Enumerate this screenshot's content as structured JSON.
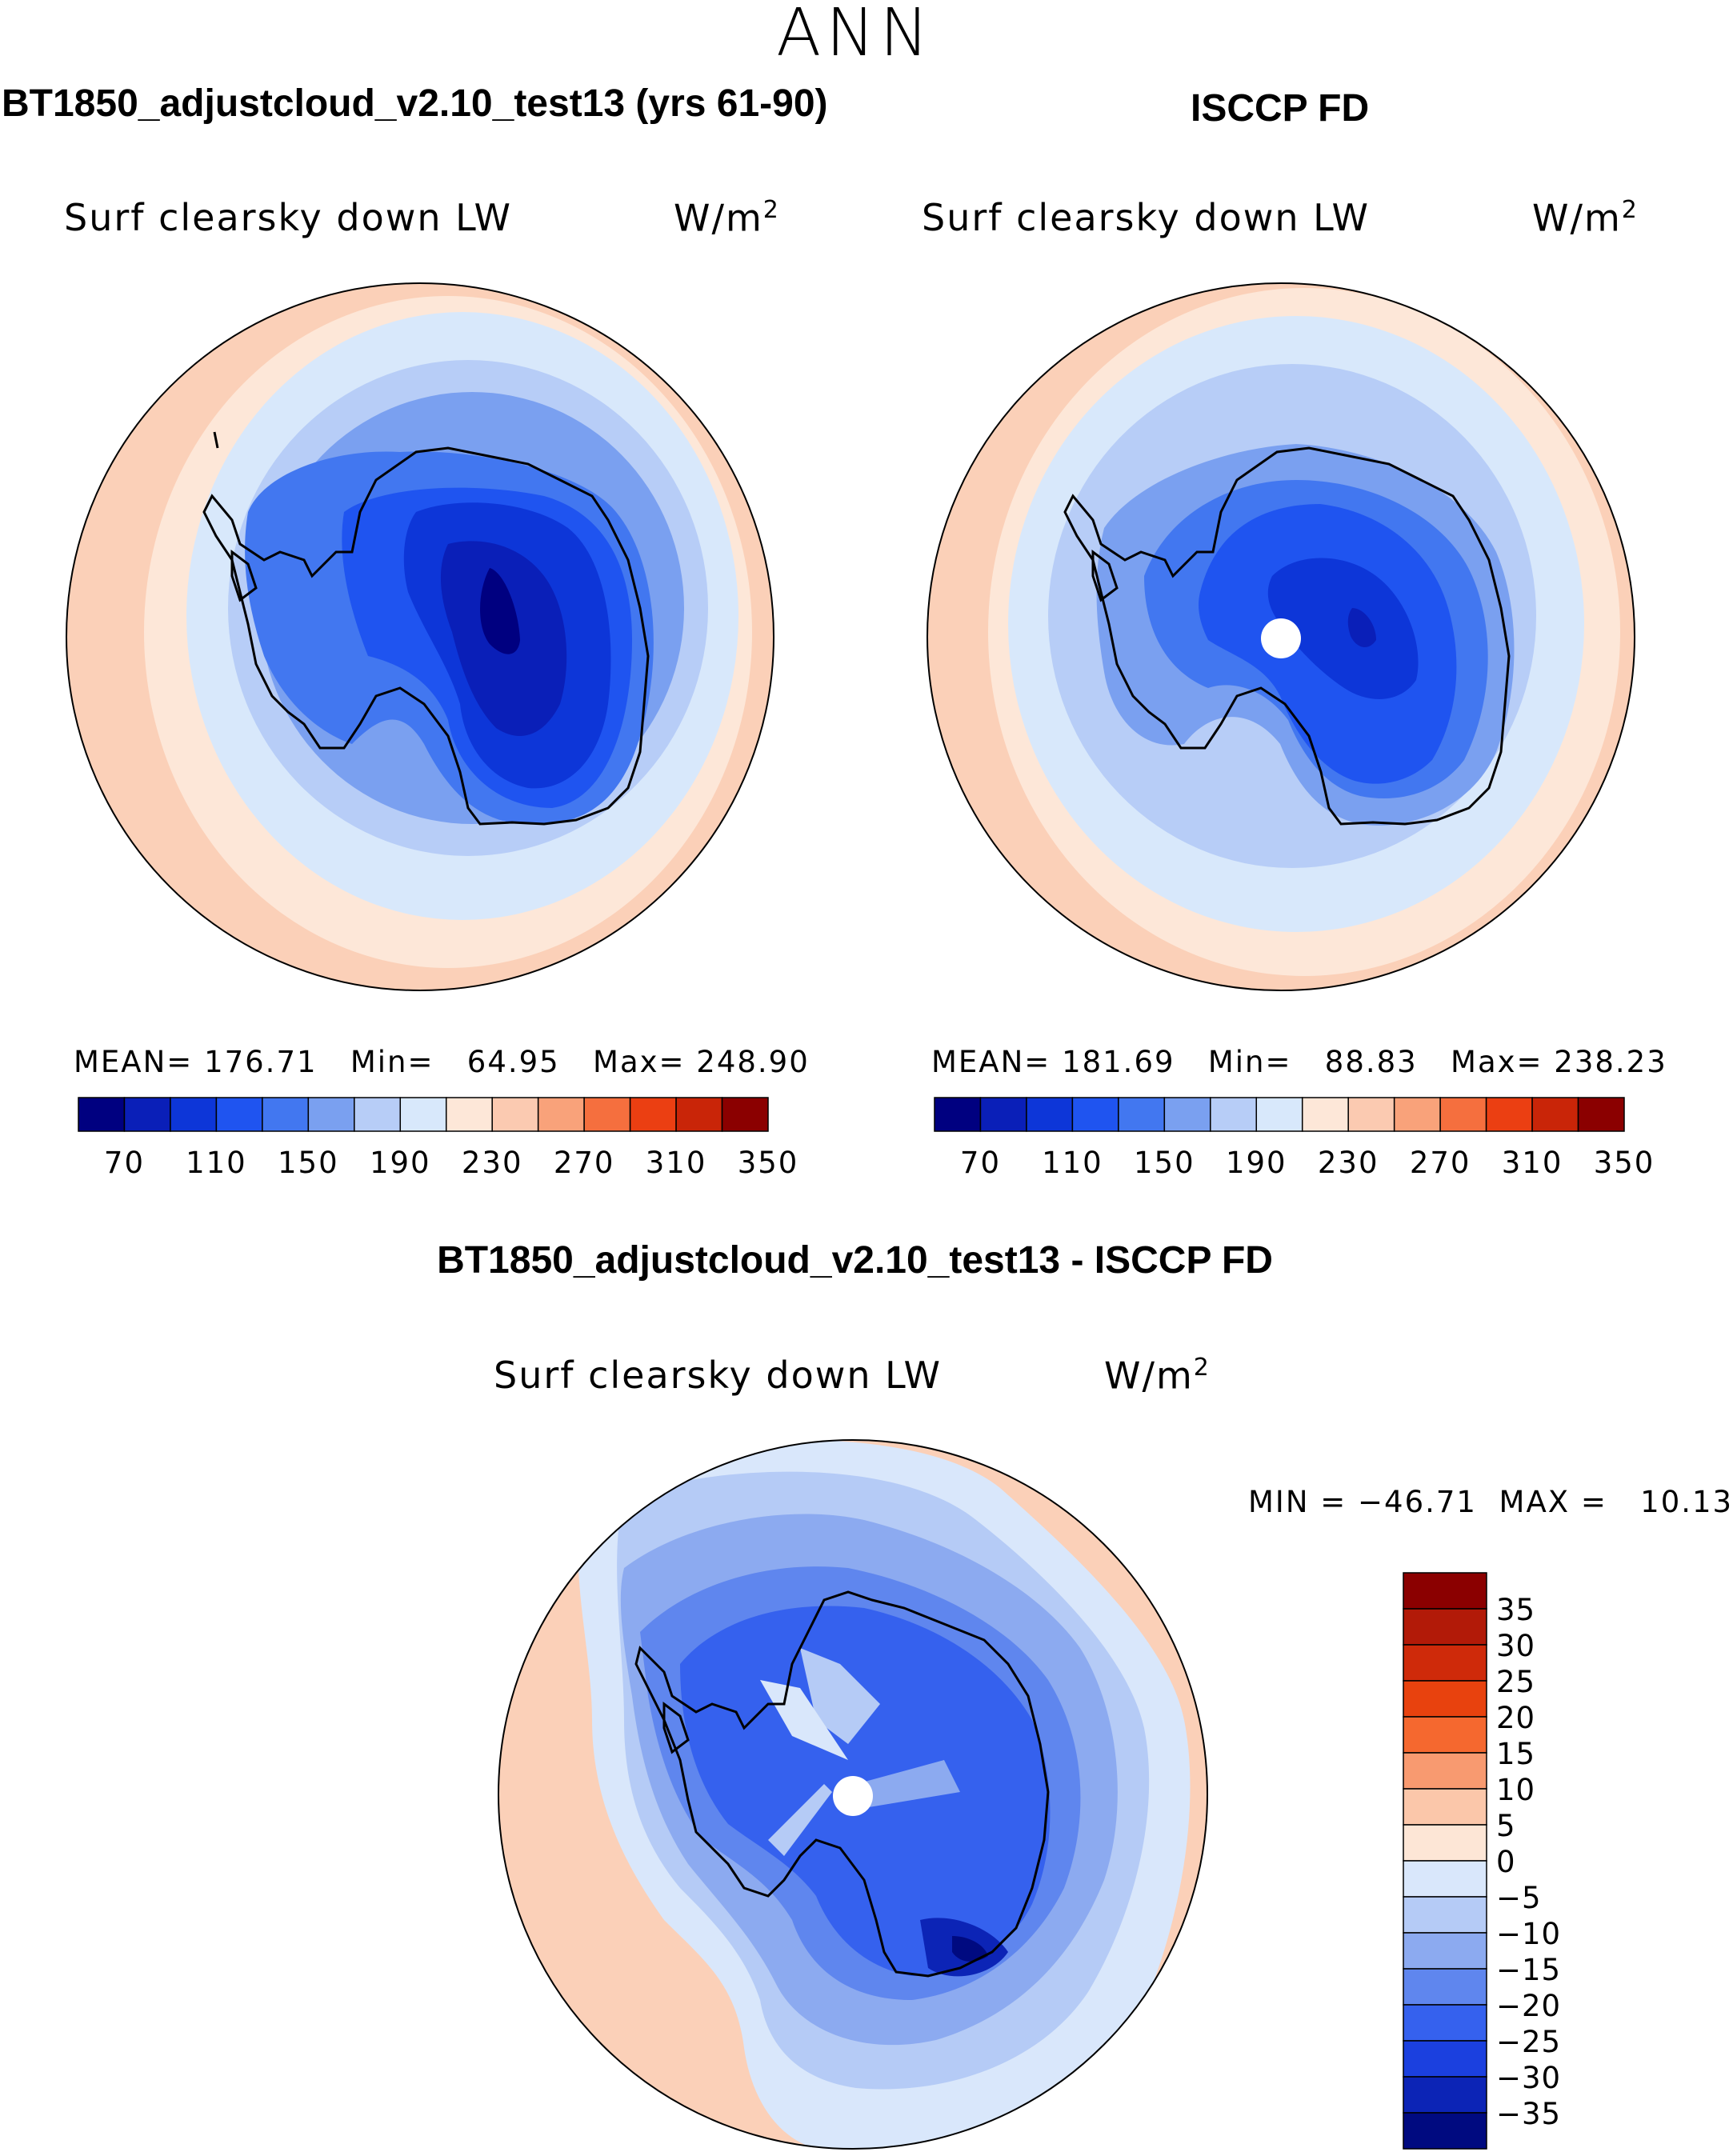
{
  "page": {
    "title": "ANN"
  },
  "colors": {
    "cb13": [
      "#000080",
      "#0a1fb8",
      "#0d36d8",
      "#1f54f0",
      "#4277f0",
      "#7aa0f0",
      "#b7cdf7",
      "#d8e8fb",
      "#fde7d8",
      "#fbcab1",
      "#f9a27a",
      "#f56f3e",
      "#eb3f12",
      "#c92508",
      "#8b0000"
    ],
    "ocean_far": "#fbd0b8",
    "coast": "#000000"
  },
  "panels": {
    "model": {
      "heading": "BT1850_adjustcloud_v2.10_test13 (yrs 61-90)",
      "variable": "Surf clearsky down LW",
      "units_base": "W/m",
      "units_exp": "2",
      "stats": {
        "mean_label": "MEAN=",
        "mean": "176.71",
        "min_label": "Min=",
        "min": "64.95",
        "max_label": "Max=",
        "max": "248.90"
      }
    },
    "obs": {
      "heading": "ISCCP FD",
      "variable": "Surf clearsky down LW",
      "units_base": "W/m",
      "units_exp": "2",
      "stats": {
        "mean_label": "MEAN=",
        "mean": "181.69",
        "min_label": "Min=",
        "min": "88.83",
        "max_label": "Max=",
        "max": "238.23"
      }
    },
    "diff": {
      "heading": "BT1850_adjustcloud_v2.10_test13 - ISCCP FD",
      "variable": "Surf clearsky down LW",
      "units_base": "W/m",
      "units_exp": "2",
      "minmax": {
        "min_label": "MIN =",
        "min": "−46.71",
        "max_label": "MAX =",
        "max": "10.13"
      }
    }
  },
  "chart_data": [
    {
      "type": "heatmap",
      "projection": "south polar stereographic",
      "title": "BT1850_adjustcloud_v2.10_test13 (yrs 61-90)",
      "variable": "Surf clearsky down LW",
      "units": "W/m2",
      "mean": 176.71,
      "min": 64.95,
      "max": 248.9,
      "colorbar_boundaries": [
        70,
        90,
        110,
        130,
        150,
        170,
        190,
        210,
        230,
        250,
        270,
        290,
        310,
        330,
        350
      ],
      "colorbar_tick_labels": [
        "70",
        "110",
        "150",
        "190",
        "230",
        "270",
        "310",
        "350"
      ],
      "contour_levels_shown": [
        70,
        90,
        110,
        130,
        150,
        170,
        190,
        210,
        230,
        250
      ]
    },
    {
      "type": "heatmap",
      "projection": "south polar stereographic",
      "title": "ISCCP FD",
      "variable": "Surf clearsky down LW",
      "units": "W/m2",
      "mean": 181.69,
      "min": 88.83,
      "max": 238.23,
      "colorbar_boundaries": [
        70,
        90,
        110,
        130,
        150,
        170,
        190,
        210,
        230,
        250,
        270,
        290,
        310,
        330,
        350
      ],
      "colorbar_tick_labels": [
        "70",
        "110",
        "150",
        "190",
        "230",
        "270",
        "310",
        "350"
      ],
      "contour_levels_shown": [
        90,
        110,
        130,
        150,
        170,
        190,
        210,
        230,
        250
      ]
    },
    {
      "type": "heatmap",
      "projection": "south polar stereographic",
      "title": "BT1850_adjustcloud_v2.10_test13 - ISCCP FD",
      "variable": "Surf clearsky down LW",
      "units": "W/m2",
      "min": -46.71,
      "max": 10.13,
      "colorbar_tick_labels": [
        "35",
        "30",
        "25",
        "20",
        "15",
        "10",
        "5",
        "0",
        "−5",
        "−10",
        "−15",
        "−20",
        "−25",
        "−30",
        "−35"
      ],
      "colorbar_levels": [
        35,
        30,
        25,
        20,
        15,
        10,
        5,
        0,
        -5,
        -10,
        -15,
        -20,
        -25,
        -30,
        -35
      ],
      "colorbar_colors": [
        "#8b0000",
        "#b21a08",
        "#cf2a0a",
        "#e8420e",
        "#f5682f",
        "#f89a70",
        "#fbc7aa",
        "#fde6d6",
        "#d9e7fb",
        "#b5cbf6",
        "#8caaf0",
        "#5f86ee",
        "#3561ee",
        "#1b40df",
        "#0c24b6",
        "#000a80"
      ]
    }
  ]
}
